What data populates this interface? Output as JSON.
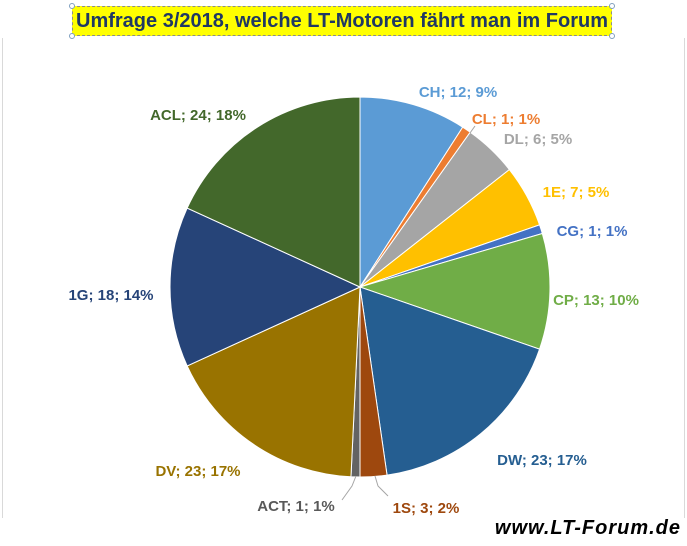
{
  "chart_data": {
    "type": "pie",
    "title": "Umfrage 3/2018, welche LT-Motoren fährt man im Forum",
    "start_angle_deg": 0,
    "direction": "clockwise",
    "slices": [
      {
        "label": "CH",
        "value": 12,
        "percent": "9%",
        "text": "CH; 12; 9%",
        "color": "#5b9bd5",
        "label_color": "#5b9bd5"
      },
      {
        "label": "CL",
        "value": 1,
        "percent": "1%",
        "text": "CL; 1; 1%",
        "color": "#ed7d31",
        "label_color": "#ed7d31"
      },
      {
        "label": "DL",
        "value": 6,
        "percent": "5%",
        "text": "DL; 6; 5%",
        "color": "#a5a5a5",
        "label_color": "#a5a5a5"
      },
      {
        "label": "1E",
        "value": 7,
        "percent": "5%",
        "text": "1E; 7; 5%",
        "color": "#ffc000",
        "label_color": "#ffc000"
      },
      {
        "label": "CG",
        "value": 1,
        "percent": "1%",
        "text": "CG; 1; 1%",
        "color": "#4472c4",
        "label_color": "#4472c4"
      },
      {
        "label": "CP",
        "value": 13,
        "percent": "10%",
        "text": "CP; 13; 10%",
        "color": "#70ad47",
        "label_color": "#70ad47"
      },
      {
        "label": "DW",
        "value": 23,
        "percent": "17%",
        "text": "DW; 23; 17%",
        "color": "#255e91",
        "label_color": "#255e91"
      },
      {
        "label": "1S",
        "value": 3,
        "percent": "2%",
        "text": "1S; 3; 2%",
        "color": "#9e480e",
        "label_color": "#9e480e"
      },
      {
        "label": "ACT",
        "value": 1,
        "percent": "1%",
        "text": "ACT; 1; 1%",
        "color": "#636363",
        "label_color": "#595959"
      },
      {
        "label": "DV",
        "value": 23,
        "percent": "17%",
        "text": "DV; 23; 17%",
        "color": "#997300",
        "label_color": "#997300"
      },
      {
        "label": "1G",
        "value": 18,
        "percent": "14%",
        "text": "1G; 18; 14%",
        "color": "#264478",
        "label_color": "#264478"
      },
      {
        "label": "ACL",
        "value": 24,
        "percent": "18%",
        "text": "ACL; 24; 18%",
        "color": "#43682b",
        "label_color": "#43682b"
      }
    ],
    "data_labels": "outside, category; value; percent",
    "legend": "none"
  },
  "watermark": "www.LT-Forum.de"
}
